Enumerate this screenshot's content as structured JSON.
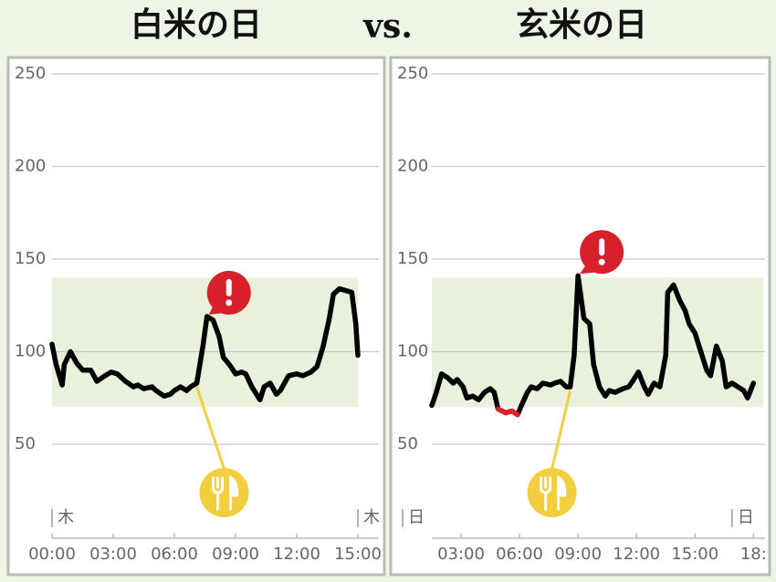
{
  "separator": "vs.",
  "chart_data": [
    {
      "type": "line",
      "title": "白米の日",
      "ylim": [
        0,
        256
      ],
      "yticks": [
        50,
        100,
        150,
        200,
        250
      ],
      "grid": true,
      "xlim": [
        0,
        15
      ],
      "xticks": [
        {
          "value": 0,
          "label": "00:00"
        },
        {
          "value": 3,
          "label": "03:00"
        },
        {
          "value": 6,
          "label": "06:00"
        },
        {
          "value": 9,
          "label": "09:00"
        },
        {
          "value": 12,
          "label": "12:00"
        },
        {
          "value": 15,
          "label": "15:00"
        }
      ],
      "day_markers": [
        {
          "value": 0,
          "label": "木"
        },
        {
          "value": 15,
          "label": "木"
        }
      ],
      "target_range": [
        70,
        140
      ],
      "band_color": "#e7f1dc",
      "meal_time": 7.1,
      "alert_time": 7.6,
      "series": [
        {
          "color": "#000000",
          "low_color": "#e0202a",
          "x": [
            0,
            0.2,
            0.5,
            0.6,
            0.9,
            1.2,
            1.5,
            1.9,
            2.2,
            2.6,
            2.9,
            3.2,
            3.6,
            4.0,
            4.2,
            4.5,
            4.9,
            5.1,
            5.5,
            5.8,
            6.0,
            6.3,
            6.6,
            6.8,
            7.1,
            7.4,
            7.6,
            7.9,
            8.2,
            8.4,
            8.7,
            9.0,
            9.3,
            9.5,
            9.8,
            10.2,
            10.4,
            10.7,
            11.0,
            11.2,
            11.6,
            12.0,
            12.3,
            12.7,
            13.0,
            13.3,
            13.6,
            13.8,
            14.1,
            14.4,
            14.7,
            14.9,
            15.0
          ],
          "values": [
            104,
            93,
            82,
            93,
            100,
            94,
            90,
            90,
            84,
            87,
            89,
            88,
            84,
            81,
            82,
            80,
            81,
            79,
            76,
            77,
            79,
            81,
            79,
            81,
            83,
            103,
            119,
            117,
            108,
            97,
            93,
            88,
            89,
            88,
            81,
            74,
            81,
            83,
            77,
            79,
            87,
            88,
            87,
            89,
            92,
            103,
            118,
            131,
            134,
            133,
            132,
            115,
            98
          ]
        }
      ]
    },
    {
      "type": "line",
      "title": "玄米の日",
      "ylim": [
        0,
        256
      ],
      "yticks": [
        50,
        100,
        150,
        200,
        250
      ],
      "grid": true,
      "xlim": [
        1.5,
        18.5
      ],
      "xticks": [
        {
          "value": 3,
          "label": "03:00"
        },
        {
          "value": 6,
          "label": "06:00"
        },
        {
          "value": 9,
          "label": "09:00"
        },
        {
          "value": 12,
          "label": "12:00"
        },
        {
          "value": 15,
          "label": "15:00"
        },
        {
          "value": 18,
          "label": "18:"
        }
      ],
      "day_markers": [
        {
          "value": 0,
          "label": "日"
        },
        {
          "value": 16.9,
          "label": "日"
        }
      ],
      "target_range": [
        70,
        140
      ],
      "band_color": "#e7f1dc",
      "meal_time": 8.6,
      "alert_time": 9.0,
      "series": [
        {
          "color": "#000000",
          "low_color": "#e0202a",
          "x": [
            1.5,
            1.7,
            2.0,
            2.3,
            2.6,
            2.8,
            3.1,
            3.3,
            3.6,
            3.9,
            4.2,
            4.5,
            4.7,
            4.9,
            5.3,
            5.6,
            5.9,
            6.1,
            6.4,
            6.6,
            6.9,
            7.2,
            7.6,
            7.8,
            8.1,
            8.4,
            8.6,
            8.8,
            9.0,
            9.3,
            9.6,
            9.8,
            10.1,
            10.4,
            10.6,
            10.9,
            11.3,
            11.6,
            11.8,
            12.1,
            12.4,
            12.6,
            12.9,
            13.2,
            13.5,
            13.6,
            13.9,
            14.2,
            14.5,
            14.7,
            15.0,
            15.3,
            15.6,
            15.8,
            16.1,
            16.4,
            16.6,
            16.9,
            17.2,
            17.5,
            17.7,
            18.0
          ],
          "values": [
            71,
            77,
            88,
            86,
            83,
            85,
            81,
            75,
            76,
            74,
            78,
            80,
            78,
            69,
            67,
            68,
            66,
            71,
            78,
            81,
            80,
            83,
            82,
            83,
            84,
            81,
            81,
            98,
            141,
            118,
            115,
            93,
            81,
            76,
            79,
            78,
            80,
            81,
            84,
            89,
            81,
            77,
            83,
            81,
            98,
            132,
            136,
            128,
            122,
            115,
            110,
            100,
            90,
            87,
            103,
            95,
            81,
            83,
            81,
            79,
            75,
            83
          ]
        }
      ]
    }
  ]
}
